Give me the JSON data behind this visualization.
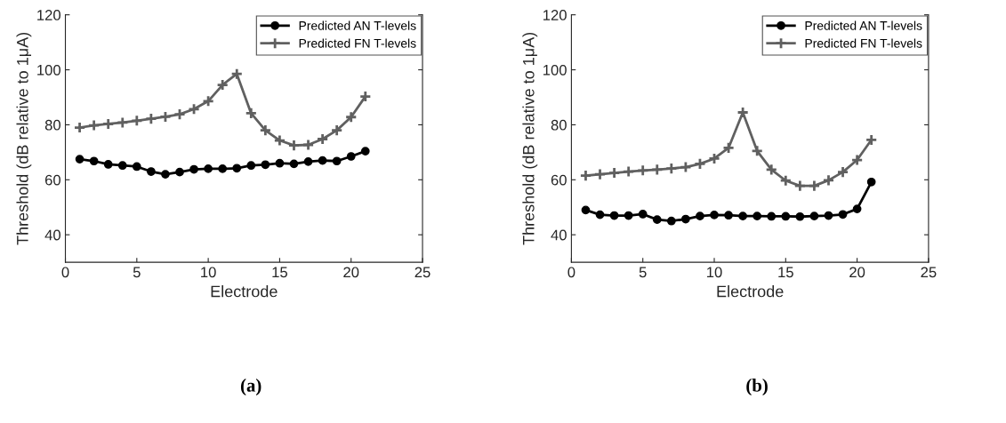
{
  "chart_data": [
    {
      "type": "line",
      "xlabel": "Electrode",
      "ylabel": "Threshold (dB relative to 1μA)",
      "annotations": [
        "(a)"
      ],
      "xlim": [
        0,
        25
      ],
      "xticks": [
        0,
        5,
        10,
        15,
        20,
        25
      ],
      "ylim": [
        30,
        120
      ],
      "yticks": [
        40,
        60,
        80,
        100,
        120
      ],
      "grid": false,
      "legend": "top right",
      "x": [
        1,
        2,
        3,
        4,
        5,
        6,
        7,
        8,
        9,
        10,
        11,
        12,
        13,
        14,
        15,
        16,
        17,
        18,
        19,
        20,
        21
      ],
      "series": [
        {
          "name": "Predicted AN T-levels",
          "color": "#000000",
          "marker": "circle",
          "values": [
            67.5,
            66.8,
            65.6,
            65.2,
            64.8,
            63,
            62,
            62.8,
            63.8,
            64,
            64,
            64.2,
            65.2,
            65.5,
            66,
            65.8,
            66.6,
            67,
            66.8,
            68.5,
            70.4
          ]
        },
        {
          "name": "Predicted FN T-levels",
          "color": "#606060",
          "marker": "cross",
          "values": [
            79,
            79.8,
            80.3,
            80.8,
            81.5,
            82.2,
            82.9,
            83.8,
            85.7,
            88.6,
            94.5,
            98.5,
            84.2,
            78,
            74.3,
            72.5,
            72.7,
            74.8,
            78,
            82.8,
            90.3
          ]
        }
      ]
    },
    {
      "type": "line",
      "xlabel": "Electrode",
      "ylabel": "Threshold (dB relative to 1μA)",
      "annotations": [
        "(b)"
      ],
      "xlim": [
        0,
        25
      ],
      "xticks": [
        0,
        5,
        10,
        15,
        20,
        25
      ],
      "ylim": [
        30,
        120
      ],
      "yticks": [
        40,
        60,
        80,
        100,
        120
      ],
      "grid": false,
      "legend": "top right",
      "x": [
        1,
        2,
        3,
        4,
        5,
        6,
        7,
        8,
        9,
        10,
        11,
        12,
        13,
        14,
        15,
        16,
        17,
        18,
        19,
        20,
        21
      ],
      "series": [
        {
          "name": "Predicted AN T-levels",
          "color": "#000000",
          "marker": "circle",
          "values": [
            49,
            47.3,
            47,
            47,
            47.5,
            45.5,
            45,
            45.7,
            46.8,
            47.2,
            47.1,
            46.8,
            46.8,
            46.7,
            46.7,
            46.6,
            46.8,
            47,
            47.4,
            49.4,
            59.2
          ]
        },
        {
          "name": "Predicted FN T-levels",
          "color": "#606060",
          "marker": "cross",
          "values": [
            61.5,
            62,
            62.5,
            63,
            63.4,
            63.7,
            64.1,
            64.6,
            65.8,
            67.7,
            71.6,
            84.5,
            70.5,
            63.7,
            59.7,
            57.8,
            57.8,
            59.8,
            62.8,
            67.2,
            74.5
          ]
        }
      ]
    }
  ]
}
